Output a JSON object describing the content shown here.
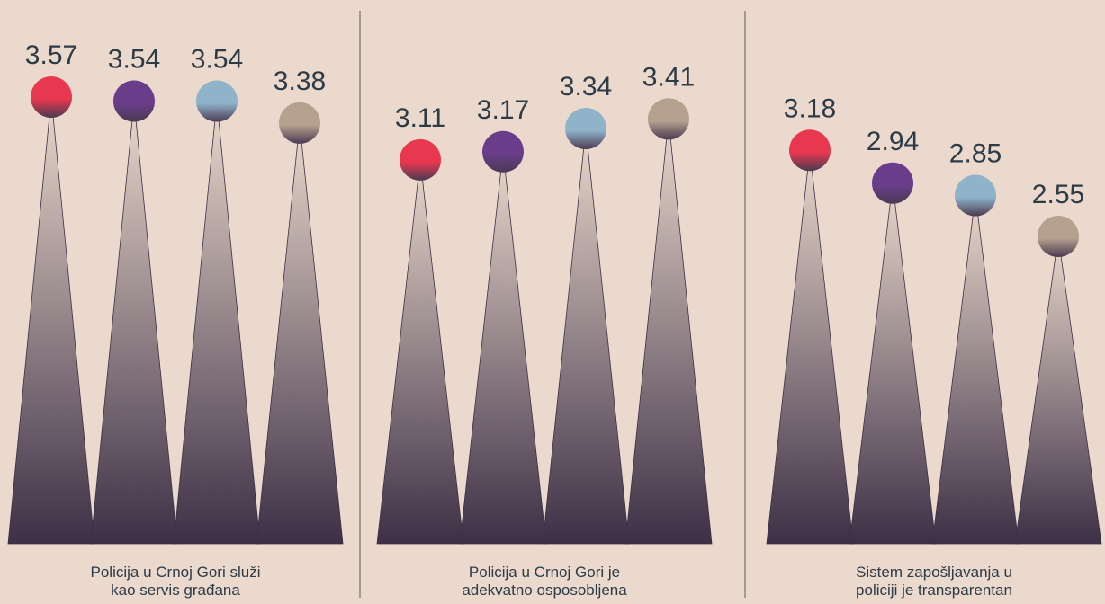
{
  "chart_data": {
    "type": "bar",
    "style": "cone-with-ball",
    "ylim": [
      2.0,
      3.8
    ],
    "grid": false,
    "legend": "none",
    "series_colors": [
      "#e8384f",
      "#6a3d8a",
      "#8fb3c9",
      "#b6a08e"
    ],
    "cone_gradient": [
      "#ead9cc",
      "#3d3046"
    ],
    "groups": [
      {
        "label_lines": [
          "Policija u Crnoj Gori služi",
          "kao servis građana"
        ],
        "values": [
          3.57,
          3.54,
          3.54,
          3.38
        ],
        "value_labels": [
          "3.57",
          "3.54",
          "3.54",
          "3.38"
        ]
      },
      {
        "label_lines": [
          "Policija u Crnoj Gori je",
          "adekvatno osposobljena"
        ],
        "values": [
          3.11,
          3.17,
          3.34,
          3.41
        ],
        "value_labels": [
          "3.11",
          "3.17",
          "3.34",
          "3.41"
        ]
      },
      {
        "label_lines": [
          "Sistem zapošljavanja u",
          "policiji je transparentan"
        ],
        "values": [
          3.18,
          2.94,
          2.85,
          2.55
        ],
        "value_labels": [
          "3.18",
          "2.94",
          "2.85",
          "2.55"
        ]
      }
    ]
  }
}
